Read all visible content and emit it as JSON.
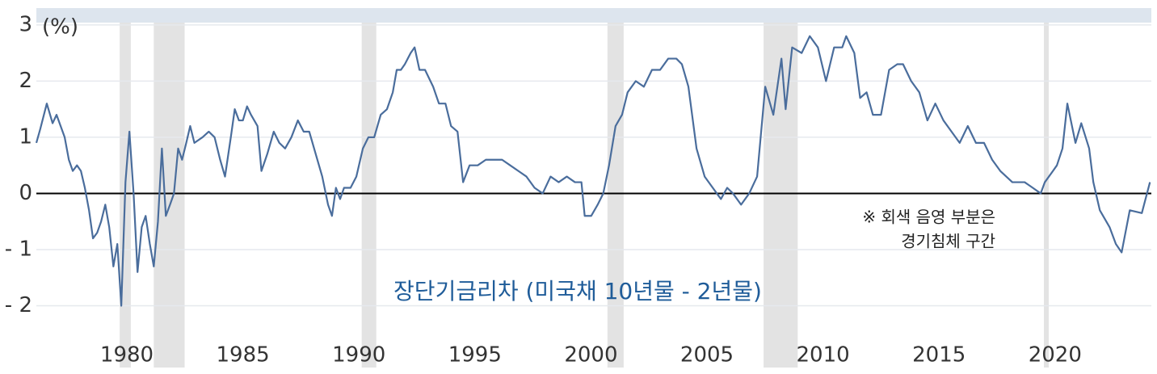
{
  "chart_data": {
    "type": "line",
    "y_label": "(%)",
    "series_label": "장단기금리차 (미국채 10년물 -  2년물)",
    "annotation": [
      "※ 회색 음영 부분은",
      "경기침체 구간"
    ],
    "xlim": [
      1976.1,
      2024.15
    ],
    "ylim": [
      -3.1,
      3.3
    ],
    "xticks": [
      1980,
      1985,
      1990,
      1995,
      2000,
      2005,
      2010,
      2015,
      2020
    ],
    "yticks": [
      3,
      2,
      1,
      0,
      {
        "value": -1,
        "label": "- 1"
      },
      {
        "value": -2,
        "label": "- 2"
      }
    ],
    "grid": true,
    "shading_color": "#e3e3e3",
    "shading": [
      [
        1979.69,
        1980.17
      ],
      [
        1981.16,
        1982.49
      ],
      [
        1990.12,
        1990.75
      ],
      [
        2000.71,
        2001.41
      ],
      [
        2007.44,
        2008.91
      ],
      [
        2019.52,
        2019.73
      ]
    ],
    "series": [
      {
        "color": "#4a6d9c",
        "x": [
          1976.1,
          1976.27,
          1976.55,
          1976.8,
          1976.97,
          1977.32,
          1977.5,
          1977.67,
          1977.85,
          1978.02,
          1978.19,
          1978.37,
          1978.54,
          1978.72,
          1978.89,
          1979.07,
          1979.24,
          1979.42,
          1979.59,
          1979.76,
          1979.94,
          1980.11,
          1980.29,
          1980.46,
          1980.64,
          1980.81,
          1980.99,
          1981.16,
          1981.34,
          1981.51,
          1981.68,
          1981.86,
          1982.03,
          1982.21,
          1982.38,
          1982.56,
          1982.73,
          1982.91,
          1983.26,
          1983.53,
          1983.78,
          1984.02,
          1984.23,
          1984.48,
          1984.65,
          1984.83,
          1985.0,
          1985.18,
          1985.35,
          1985.63,
          1985.8,
          1986.05,
          1986.33,
          1986.57,
          1986.82,
          1987.09,
          1987.37,
          1987.62,
          1987.86,
          1988.14,
          1988.42,
          1988.67,
          1988.84,
          1989.01,
          1989.19,
          1989.36,
          1989.64,
          1989.89,
          1990.17,
          1990.41,
          1990.66,
          1990.94,
          1991.21,
          1991.46,
          1991.63,
          1991.81,
          1991.98,
          1992.23,
          1992.4,
          1992.61,
          1992.85,
          1993.2,
          1993.45,
          1993.73,
          1993.97,
          1994.25,
          1994.49,
          1994.77,
          1995.12,
          1995.47,
          1995.82,
          1996.17,
          1996.52,
          1996.87,
          1997.22,
          1997.57,
          1997.92,
          1998.26,
          1998.61,
          1998.96,
          1999.31,
          1999.59,
          1999.73,
          2000.01,
          2000.29,
          2000.53,
          2000.78,
          2001.06,
          2001.34,
          2001.58,
          2001.93,
          2002.28,
          2002.63,
          2002.98,
          2003.33,
          2003.68,
          2003.92,
          2004.2,
          2004.55,
          2004.9,
          2005.25,
          2005.6,
          2005.87,
          2006.12,
          2006.47,
          2006.82,
          2007.16,
          2007.51,
          2007.86,
          2008.21,
          2008.39,
          2008.67,
          2009.08,
          2009.43,
          2009.78,
          2010.13,
          2010.48,
          2010.83,
          2011.0,
          2011.35,
          2011.6,
          2011.88,
          2012.15,
          2012.5,
          2012.85,
          2013.2,
          2013.45,
          2013.8,
          2014.15,
          2014.5,
          2014.84,
          2015.19,
          2015.54,
          2015.89,
          2016.24,
          2016.59,
          2016.94,
          2017.29,
          2017.64,
          2018.16,
          2018.69,
          2019.04,
          2019.38,
          2019.56,
          2019.91,
          2020.08,
          2020.32,
          2020.53,
          2020.88,
          2021.13,
          2021.47,
          2021.65,
          2021.93,
          2022.35,
          2022.62,
          2022.87,
          2023.22,
          2023.74,
          2024.09
        ],
        "values": [
          0.9,
          1.15,
          1.6,
          1.25,
          1.4,
          1.0,
          0.6,
          0.4,
          0.5,
          0.4,
          0.1,
          -0.3,
          -0.8,
          -0.7,
          -0.5,
          -0.2,
          -0.6,
          -1.3,
          -0.9,
          -2.0,
          0.2,
          1.1,
          0.0,
          -1.4,
          -0.6,
          -0.4,
          -0.9,
          -1.3,
          -0.5,
          0.8,
          -0.4,
          -0.2,
          0.0,
          0.8,
          0.6,
          0.9,
          1.2,
          0.9,
          1.0,
          1.1,
          1.0,
          0.6,
          0.3,
          1.0,
          1.5,
          1.3,
          1.3,
          1.55,
          1.4,
          1.2,
          0.4,
          0.7,
          1.1,
          0.9,
          0.8,
          1.0,
          1.3,
          1.1,
          1.1,
          0.7,
          0.3,
          -0.2,
          -0.4,
          0.1,
          -0.1,
          0.1,
          0.1,
          0.3,
          0.8,
          1.0,
          1.0,
          1.4,
          1.5,
          1.8,
          2.2,
          2.2,
          2.3,
          2.5,
          2.6,
          2.2,
          2.2,
          1.9,
          1.6,
          1.6,
          1.2,
          1.1,
          0.2,
          0.5,
          0.5,
          0.6,
          0.6,
          0.6,
          0.5,
          0.4,
          0.3,
          0.1,
          0.0,
          0.3,
          0.2,
          0.3,
          0.2,
          0.2,
          -0.4,
          -0.4,
          -0.2,
          0.0,
          0.5,
          1.2,
          1.4,
          1.8,
          2.0,
          1.9,
          2.2,
          2.2,
          2.4,
          2.4,
          2.3,
          1.9,
          0.8,
          0.3,
          0.1,
          -0.1,
          0.1,
          0.0,
          -0.2,
          0.0,
          0.3,
          1.9,
          1.4,
          2.4,
          1.5,
          2.6,
          2.5,
          2.8,
          2.6,
          2.0,
          2.6,
          2.6,
          2.8,
          2.5,
          1.7,
          1.8,
          1.4,
          1.4,
          2.2,
          2.3,
          2.3,
          2.0,
          1.8,
          1.3,
          1.6,
          1.3,
          1.1,
          0.9,
          1.2,
          0.9,
          0.9,
          0.6,
          0.4,
          0.2,
          0.2,
          0.1,
          0.0,
          0.2,
          0.4,
          0.5,
          0.8,
          1.6,
          0.9,
          1.25,
          0.8,
          0.2,
          -0.3,
          -0.6,
          -0.9,
          -1.05,
          -0.3,
          -0.35,
          0.2
        ]
      }
    ]
  }
}
